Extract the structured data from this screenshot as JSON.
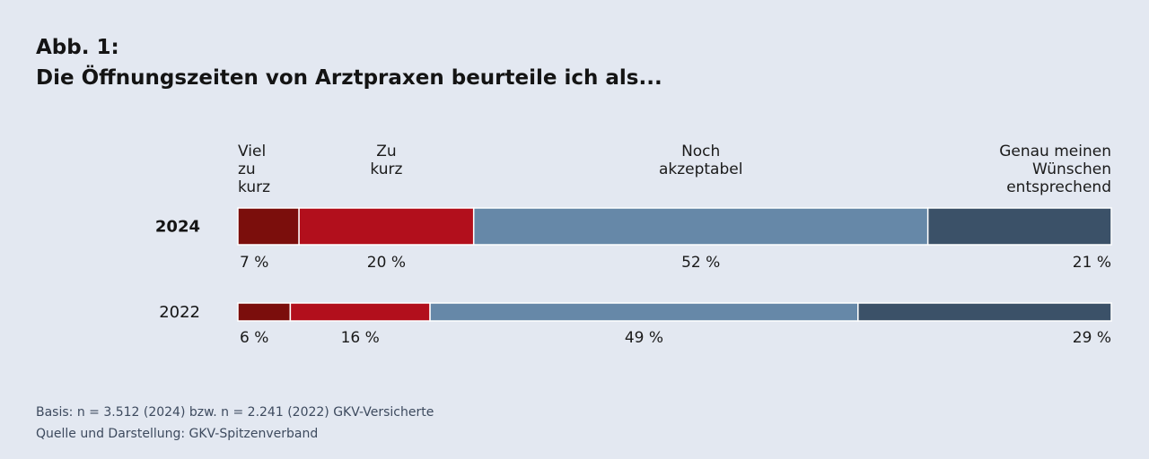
{
  "title": {
    "line1": "Abb. 1:",
    "line2": "Die Öffnungszeiten von Arztpraxen beurteile ich als..."
  },
  "footer": {
    "basis": "Basis: n = 3.512 (2024) bzw. n = 2.241 (2022) GKV-Versicherte",
    "source": "Quelle und Darstellung: GKV-Spitzenverband"
  },
  "chart_data": {
    "type": "bar",
    "orientation": "horizontal",
    "stacked": true,
    "value_format": "{v} %",
    "xlim": [
      0,
      100
    ],
    "grid": false,
    "legend_position": "top",
    "categories": [
      "2024",
      "2022"
    ],
    "series": [
      {
        "name": "Viel zu kurz",
        "legend_lines": [
          "Viel",
          "zu",
          "kurz"
        ],
        "align": "start",
        "color": "#7b0e0c",
        "values": [
          7,
          6
        ]
      },
      {
        "name": "Zu kurz",
        "legend_lines": [
          "Zu",
          "kurz"
        ],
        "align": "middle",
        "color": "#b20f1c",
        "values": [
          20,
          16
        ]
      },
      {
        "name": "Noch akzeptabel",
        "legend_lines": [
          "Noch",
          "akzeptabel"
        ],
        "align": "middle",
        "color": "#6688a8",
        "values": [
          52,
          49
        ]
      },
      {
        "name": "Genau meinen Wünschen entsprechend",
        "legend_lines": [
          "Genau meinen",
          "Wünschen",
          "entsprechend"
        ],
        "align": "end",
        "color": "#3b5168",
        "values": [
          21,
          29
        ]
      }
    ]
  }
}
